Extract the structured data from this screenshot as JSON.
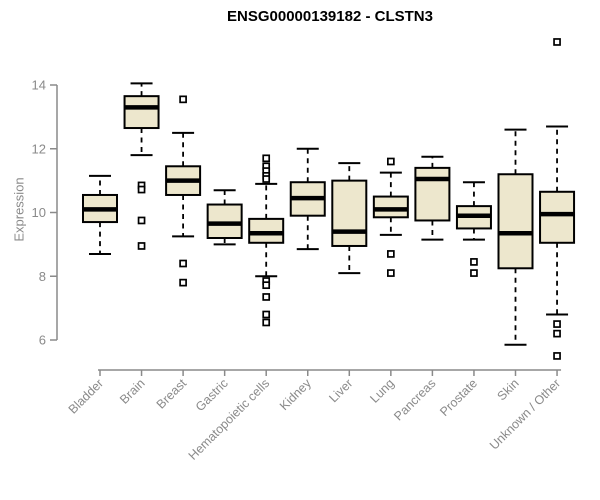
{
  "chart_data": {
    "type": "boxplot",
    "title": "ENSG00000139182 - CLSTN3",
    "xlabel": "",
    "ylabel": "Expression",
    "ylim": [
      5.4,
      15.6
    ],
    "yticks": [
      6,
      8,
      10,
      12,
      14
    ],
    "grid": false,
    "legend": null,
    "categories": [
      "Bladder",
      "Brain",
      "Breast",
      "Gastric",
      "Hematopoietic cells",
      "Kidney",
      "Liver",
      "Lung",
      "Pancreas",
      "Prostate",
      "Skin",
      "Unknown / Other"
    ],
    "series": [
      {
        "name": "Bladder",
        "low": 8.7,
        "q1": 9.7,
        "median": 10.1,
        "q3": 10.55,
        "high": 11.15,
        "outliers": []
      },
      {
        "name": "Brain",
        "low": 11.8,
        "q1": 12.65,
        "median": 13.3,
        "q3": 13.65,
        "high": 14.05,
        "outliers": [
          10.85,
          10.72,
          9.75,
          8.95
        ]
      },
      {
        "name": "Breast",
        "low": 9.25,
        "q1": 10.55,
        "median": 11.0,
        "q3": 11.45,
        "high": 12.5,
        "outliers": [
          13.55,
          8.4,
          7.8
        ]
      },
      {
        "name": "Gastric",
        "low": 9.0,
        "q1": 9.2,
        "median": 9.65,
        "q3": 10.25,
        "high": 10.7,
        "outliers": []
      },
      {
        "name": "Hematopoietic cells",
        "low": 8.0,
        "q1": 9.05,
        "median": 9.35,
        "q3": 9.8,
        "high": 10.9,
        "outliers": [
          11.7,
          11.45,
          11.3,
          11.15,
          11.05,
          7.85,
          7.72,
          7.35,
          6.8,
          6.55
        ]
      },
      {
        "name": "Kidney",
        "low": 8.85,
        "q1": 9.9,
        "median": 10.45,
        "q3": 10.95,
        "high": 12.0,
        "outliers": []
      },
      {
        "name": "Liver",
        "low": 8.1,
        "q1": 8.95,
        "median": 9.4,
        "q3": 11.0,
        "high": 11.55,
        "outliers": []
      },
      {
        "name": "Lung",
        "low": 9.3,
        "q1": 9.85,
        "median": 10.1,
        "q3": 10.5,
        "high": 11.25,
        "outliers": [
          11.6,
          8.7,
          8.1
        ]
      },
      {
        "name": "Pancreas",
        "low": 9.15,
        "q1": 9.75,
        "median": 11.05,
        "q3": 11.4,
        "high": 11.75,
        "outliers": []
      },
      {
        "name": "Prostate",
        "low": 9.15,
        "q1": 9.5,
        "median": 9.9,
        "q3": 10.2,
        "high": 10.95,
        "outliers": [
          8.45,
          8.1
        ]
      },
      {
        "name": "Skin",
        "low": 5.85,
        "q1": 8.25,
        "median": 9.35,
        "q3": 11.2,
        "high": 12.6,
        "outliers": []
      },
      {
        "name": "Unknown / Other",
        "low": 6.8,
        "q1": 9.05,
        "median": 9.95,
        "q3": 10.65,
        "high": 12.7,
        "outliers": [
          15.35,
          6.5,
          6.2,
          5.5
        ]
      }
    ],
    "colors": {
      "box_fill": "#EDE7CD",
      "box_stroke": "#000000",
      "median": "#000000",
      "axis": "#8a8a8a",
      "title": "#000000",
      "background": "#ffffff"
    }
  }
}
